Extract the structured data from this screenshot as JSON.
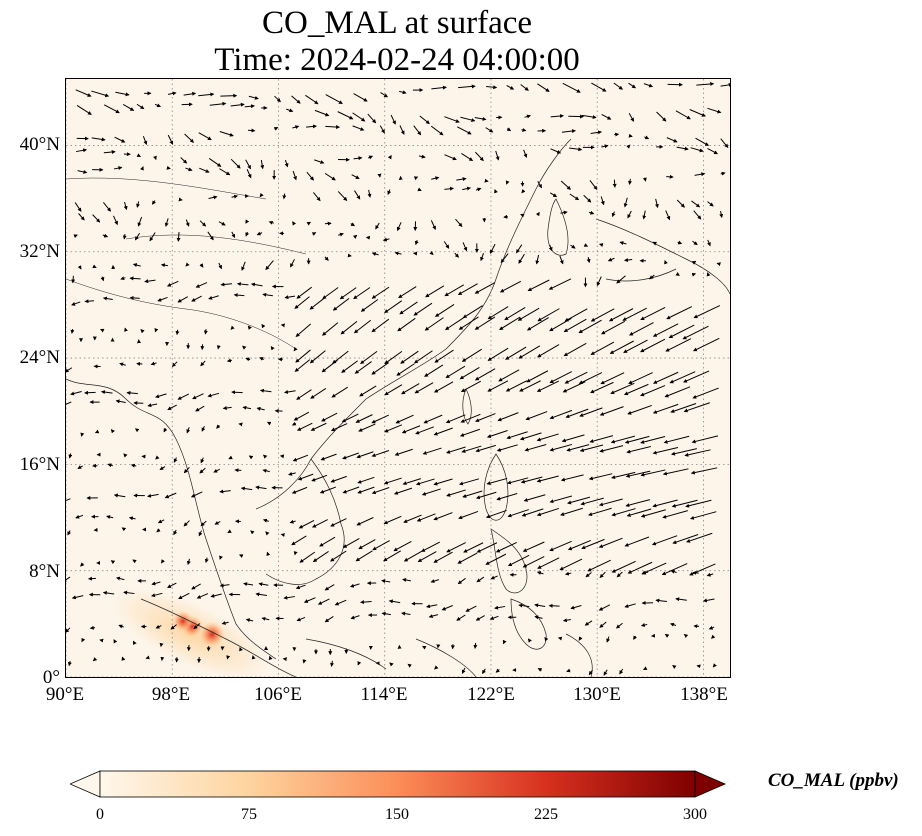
{
  "title": {
    "line1": "CO_MAL at surface",
    "line2": "Time: 2024-02-24 04:00:00"
  },
  "map": {
    "lon_range": [
      90,
      140
    ],
    "lat_range": [
      0,
      45
    ],
    "lat_ticks": [
      {
        "value": 0,
        "label": "0°"
      },
      {
        "value": 8,
        "label": "8°N"
      },
      {
        "value": 16,
        "label": "16°N"
      },
      {
        "value": 24,
        "label": "24°N"
      },
      {
        "value": 32,
        "label": "32°N"
      },
      {
        "value": 40,
        "label": "40°N"
      }
    ],
    "lon_ticks": [
      {
        "value": 90,
        "label": "90°E"
      },
      {
        "value": 98,
        "label": "98°E"
      },
      {
        "value": 106,
        "label": "106°E"
      },
      {
        "value": 114,
        "label": "114°E"
      },
      {
        "value": 122,
        "label": "122°E"
      },
      {
        "value": 130,
        "label": "130°E"
      },
      {
        "value": 138,
        "label": "138°E"
      }
    ],
    "gridlines": "dotted",
    "vectors": "wind arrows",
    "hotspots": [
      {
        "lon": 99.5,
        "lat": 3.8,
        "value": 160
      },
      {
        "lon": 101.0,
        "lat": 3.2,
        "value": 220
      },
      {
        "lon": 98.8,
        "lat": 4.2,
        "value": 140
      }
    ]
  },
  "colorbar": {
    "label": "CO_MAL (ppbv)",
    "min": 0,
    "max": 300,
    "ticks": [
      "0",
      "75",
      "150",
      "225",
      "300"
    ],
    "colormap": "OrRd",
    "colors": [
      "#fff7ec",
      "#fdd49e",
      "#fc8d59",
      "#d7301f",
      "#7f0000"
    ],
    "extend": "both"
  }
}
